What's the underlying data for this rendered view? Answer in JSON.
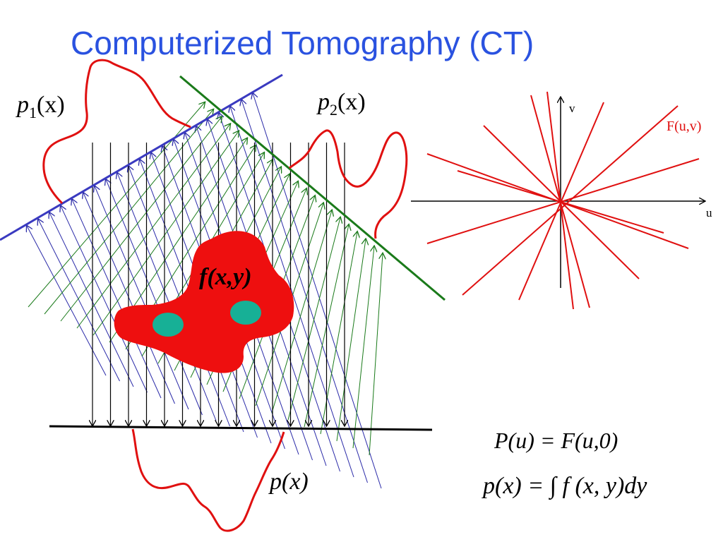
{
  "slide": {
    "title": "Computerized Tomography (CT)"
  },
  "labels": {
    "p1": {
      "base": "p",
      "sub": "1",
      "arg": "(x)"
    },
    "p2": {
      "base": "p",
      "sub": "2",
      "arg": "(x)"
    },
    "p": {
      "text": "p(x)"
    },
    "object": "f(x,y)",
    "axis_u": "u",
    "axis_v": "v",
    "fourier": "F(u,v)"
  },
  "equations": {
    "slice_theorem": "P(u) = F(u,0)",
    "projection": "p(x) = ∫ f (x, y)dy"
  },
  "colors": {
    "title": "#2a52e0",
    "vertical_rays": "#000000",
    "green_rays": "#1a7a1a",
    "blue_rays": "#2a2aa8",
    "profile_curve": "#e01010",
    "object_fill": "#ee0f0f",
    "inclusion_fill": "#17b096",
    "spokes": "#e01010"
  }
}
